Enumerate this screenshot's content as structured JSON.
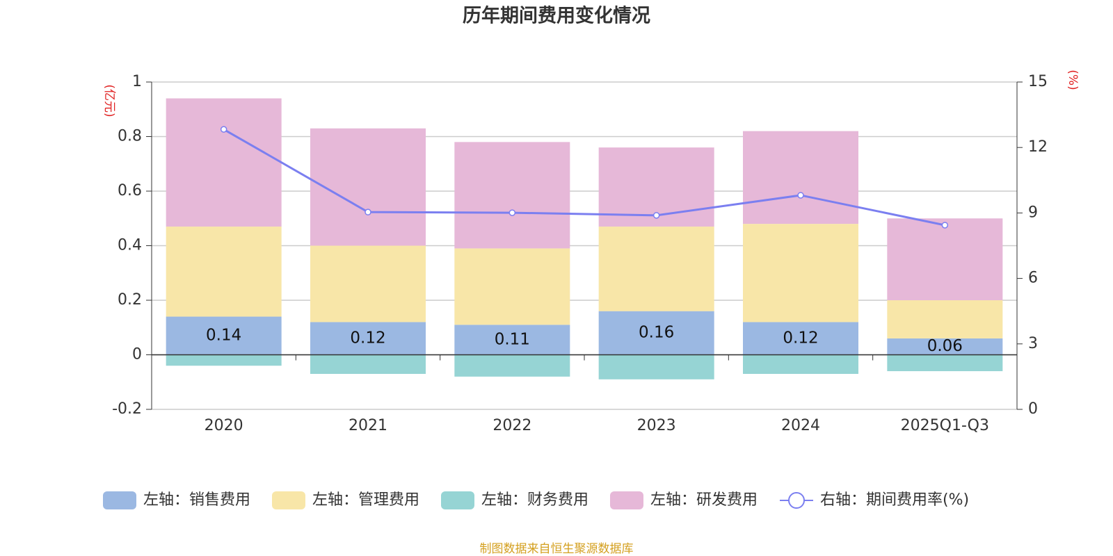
{
  "chart_data": {
    "type": "bar",
    "title": "历年期间费用变化情况",
    "categories": [
      "2020",
      "2021",
      "2022",
      "2023",
      "2024",
      "2025Q1-Q3"
    ],
    "series": [
      {
        "name": "左轴：销售费用",
        "color": "#9bb8e2",
        "values": [
          0.14,
          0.12,
          0.11,
          0.16,
          0.12,
          0.06
        ],
        "labels": true
      },
      {
        "name": "左轴：管理费用",
        "color": "#f8e6a8",
        "values": [
          0.33,
          0.28,
          0.28,
          0.31,
          0.36,
          0.14
        ]
      },
      {
        "name": "左轴：财务费用",
        "color": "#96d4d4",
        "values": [
          -0.04,
          -0.07,
          -0.08,
          -0.09,
          -0.07,
          -0.06
        ]
      },
      {
        "name": "左轴：研发费用",
        "color": "#e6b8d8",
        "values": [
          0.47,
          0.43,
          0.39,
          0.29,
          0.34,
          0.3
        ]
      },
      {
        "name": "右轴：期间费用率(%)",
        "color": "#7b7ff0",
        "type": "line",
        "axis": "y2",
        "values": [
          12.83,
          9.04,
          9.01,
          8.89,
          9.81,
          8.44
        ]
      }
    ],
    "y_label": "(亿元)",
    "y2_label": "(%)",
    "ylim": [
      -0.2,
      1
    ],
    "yticks": [
      -0.2,
      0,
      0.2,
      0.4,
      0.6,
      0.8,
      1
    ],
    "y2lim": [
      0,
      15
    ],
    "y2ticks": [
      0,
      3,
      6,
      9,
      12,
      15
    ],
    "grid": true,
    "legend": "bottom",
    "source": "制图数据来自恒生聚源数据库"
  }
}
